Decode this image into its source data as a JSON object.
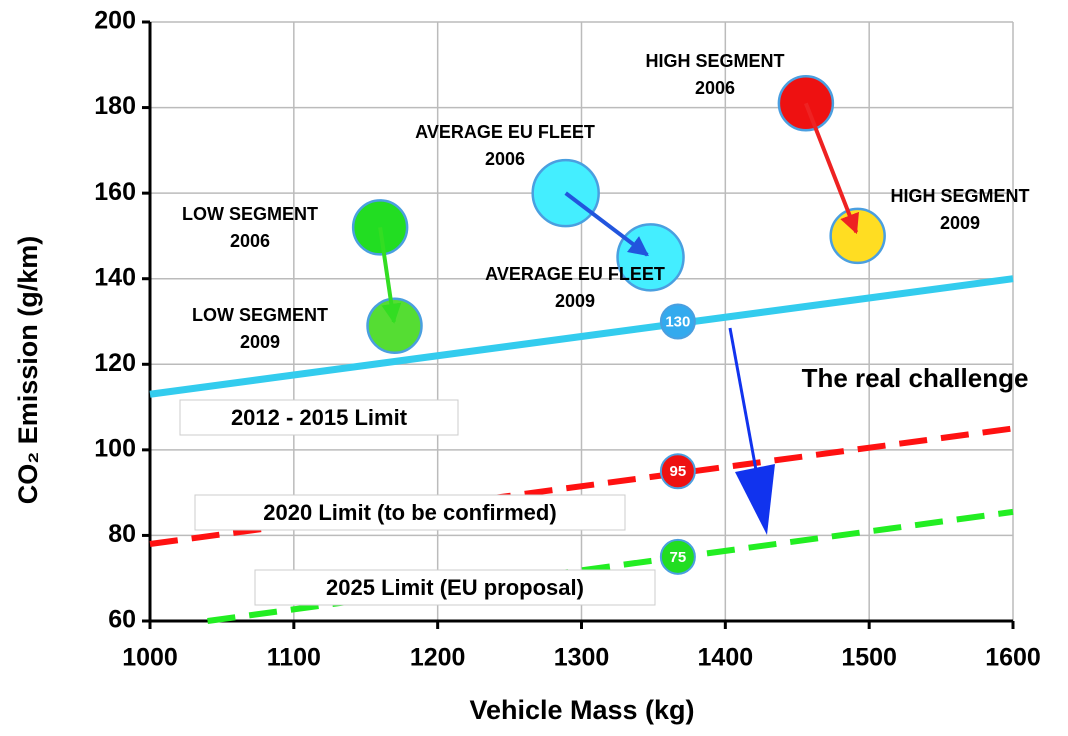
{
  "chart_data": {
    "type": "scatter",
    "xlabel": "Vehicle Mass (kg)",
    "ylabel": "CO₂ Emission (g/km)",
    "xlim": [
      1000,
      1600
    ],
    "xticks": [
      1000,
      1100,
      1200,
      1300,
      1400,
      1500,
      1600
    ],
    "ylim": [
      60,
      200
    ],
    "yticks": [
      60,
      80,
      100,
      120,
      140,
      160,
      180,
      200
    ],
    "grid": true,
    "groups": [
      {
        "arrow_color": "#33dd22",
        "points": [
          {
            "label": [
              "LOW SEGMENT",
              "2006"
            ],
            "x": 1160,
            "y": 152,
            "color": "#22dd22"
          },
          {
            "label": [
              "LOW SEGMENT",
              "2009"
            ],
            "x": 1170,
            "y": 129,
            "color": "#55dd33"
          }
        ]
      },
      {
        "arrow_color": "#2255dd",
        "points": [
          {
            "label": [
              "AVERAGE EU FLEET",
              "2006"
            ],
            "x": 1289,
            "y": 160,
            "color": "#44eeff"
          },
          {
            "label": [
              "AVERAGE EU FLEET",
              "2009"
            ],
            "x": 1348,
            "y": 145,
            "color": "#44eeff"
          }
        ]
      },
      {
        "arrow_color": "#ee2222",
        "points": [
          {
            "label": [
              "HIGH SEGMENT",
              "2006"
            ],
            "x": 1456,
            "y": 181,
            "color": "#ee1111"
          },
          {
            "label": [
              "HIGH SEGMENT",
              "2009"
            ],
            "x": 1492,
            "y": 150,
            "color": "#ffdd22"
          }
        ]
      }
    ],
    "limits": [
      {
        "label": "2012 - 2015 Limit",
        "x": [
          1000,
          1600
        ],
        "y": [
          113,
          140
        ],
        "color": "#33ccee",
        "dashed": false,
        "marker": {
          "x": 1367,
          "y": 130,
          "color": "#33aaee"
        }
      },
      {
        "label": "2020 Limit (to be confirmed)",
        "x": [
          1000,
          1600
        ],
        "y": [
          78,
          105
        ],
        "color": "#ff1111",
        "dashed": true,
        "marker": {
          "x": 1367,
          "y": 95,
          "color": "#ee1111"
        }
      },
      {
        "label": "2025 Limit (EU proposal)",
        "x": [
          1040,
          1600
        ],
        "y": [
          60,
          85.5
        ],
        "color": "#22ee22",
        "dashed": true,
        "marker": {
          "x": 1367,
          "y": 75,
          "color": "#22dd22"
        }
      }
    ],
    "annotation": "The real challenge"
  }
}
